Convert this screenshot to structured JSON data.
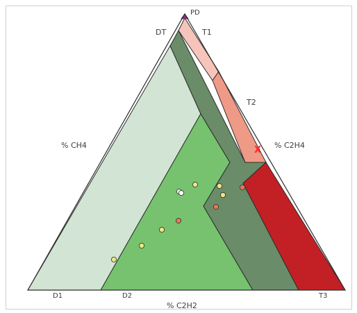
{
  "chart_data": {
    "type": "scatter",
    "title": "",
    "axis_labels": {
      "left": "% CH4",
      "right": "% C2H4",
      "bottom": "% C2H2"
    },
    "zone_labels": {
      "PD": "PD",
      "DT": "DT",
      "T1": "T1",
      "T2": "T2",
      "T3": "T3",
      "D1": "D1",
      "D2": "D2"
    },
    "colors": {
      "D1": "#d2e4d3",
      "D2": "#76c26f",
      "DT": "#6a8c68",
      "T1": "#f7c4bb",
      "T2": "#ef9a86",
      "T3": "#c22025",
      "PD": "#9b2a8c",
      "point_yellow": "#f2e680",
      "point_orange": "#e57a52",
      "point_white": "#ffffff",
      "marker_x": "#ff2a2a"
    },
    "points": [
      {
        "zone": "D2",
        "color": "yellow"
      },
      {
        "zone": "D2",
        "color": "yellow"
      },
      {
        "zone": "D2",
        "color": "yellow"
      },
      {
        "zone": "D2",
        "color": "orange"
      },
      {
        "zone": "D2",
        "color": "white"
      },
      {
        "zone": "D2",
        "color": "white"
      },
      {
        "zone": "D2",
        "color": "yellow"
      },
      {
        "zone": "DT",
        "color": "yellow"
      },
      {
        "zone": "DT",
        "color": "yellow"
      },
      {
        "zone": "DT",
        "color": "orange"
      },
      {
        "zone": "DT",
        "color": "orange"
      }
    ],
    "marker": {
      "label": "X",
      "zone": "T2 / DT boundary"
    }
  }
}
